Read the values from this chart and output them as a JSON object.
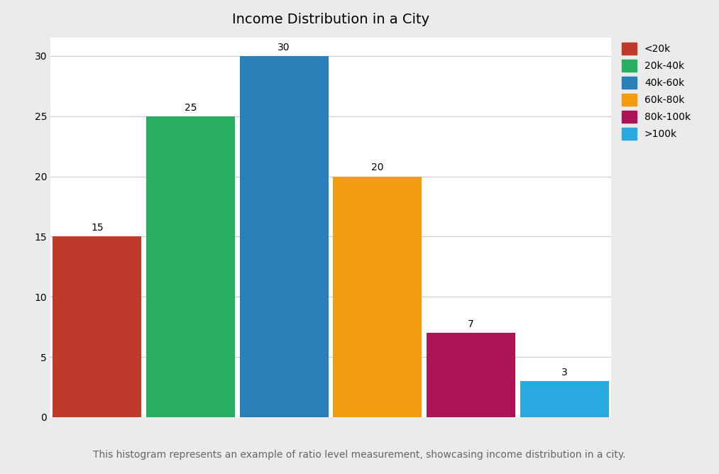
{
  "title": "Income Distribution in a City",
  "categories": [
    "<20k",
    "20k-40k",
    "40k-60k",
    "60k-80k",
    "80k-100k",
    ">100k"
  ],
  "values": [
    15,
    25,
    30,
    20,
    7,
    3
  ],
  "colors": [
    "#c0392b",
    "#27ae60",
    "#2980b9",
    "#f39c12",
    "#ad1457",
    "#29a9e0"
  ],
  "ylim": [
    0,
    31.5
  ],
  "yticks": [
    0,
    5,
    10,
    15,
    20,
    25,
    30
  ],
  "background_color": "#ebebeb",
  "plot_background": "#ffffff",
  "annotation_text": "This histogram represents an example of ratio level measurement, showcasing income distribution in a city.",
  "legend_labels": [
    "<20k",
    "20k-40k",
    "40k-60k",
    "60k-80k",
    "80k-100k",
    ">100k"
  ],
  "legend_colors": [
    "#c0392b",
    "#27ae60",
    "#2980b9",
    "#f39c12",
    "#ad1457",
    "#29a9e0"
  ],
  "title_fontsize": 14,
  "annotation_fontsize": 10,
  "bar_label_fontsize": 10
}
